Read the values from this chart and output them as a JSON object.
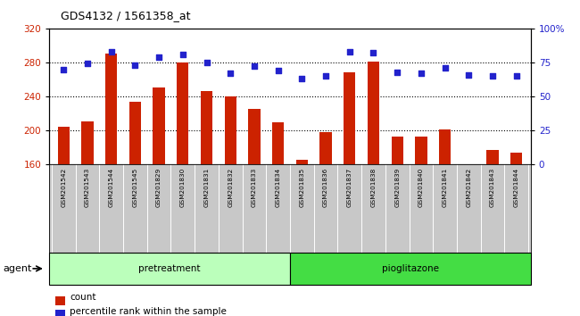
{
  "title": "GDS4132 / 1561358_at",
  "samples": [
    "GSM201542",
    "GSM201543",
    "GSM201544",
    "GSM201545",
    "GSM201829",
    "GSM201830",
    "GSM201831",
    "GSM201832",
    "GSM201833",
    "GSM201834",
    "GSM201835",
    "GSM201836",
    "GSM201837",
    "GSM201838",
    "GSM201839",
    "GSM201840",
    "GSM201841",
    "GSM201842",
    "GSM201843",
    "GSM201844"
  ],
  "counts": [
    204,
    211,
    290,
    234,
    250,
    280,
    246,
    240,
    225,
    209,
    165,
    198,
    268,
    281,
    193,
    193,
    201,
    160,
    177,
    174
  ],
  "percentiles": [
    70,
    74,
    83,
    73,
    79,
    81,
    75,
    67,
    72,
    69,
    63,
    65,
    83,
    82,
    68,
    67,
    71,
    66,
    65,
    65
  ],
  "pretreatment_count": 10,
  "pioglitazone_count": 10,
  "ylim_left": [
    160,
    320
  ],
  "ylim_right": [
    0,
    100
  ],
  "yticks_left": [
    160,
    200,
    240,
    280,
    320
  ],
  "yticks_right": [
    0,
    25,
    50,
    75,
    100
  ],
  "bar_color": "#cc2200",
  "dot_color": "#2222cc",
  "pretreatment_color": "#bbffbb",
  "pioglitazone_color": "#44dd44",
  "tick_color_left": "#cc2200",
  "tick_color_right": "#2222cc",
  "bar_width": 0.5,
  "grid_values": [
    200,
    240,
    280
  ],
  "xlabel_fontsize": 5.5,
  "sample_bg_color": "#c8c8c8"
}
